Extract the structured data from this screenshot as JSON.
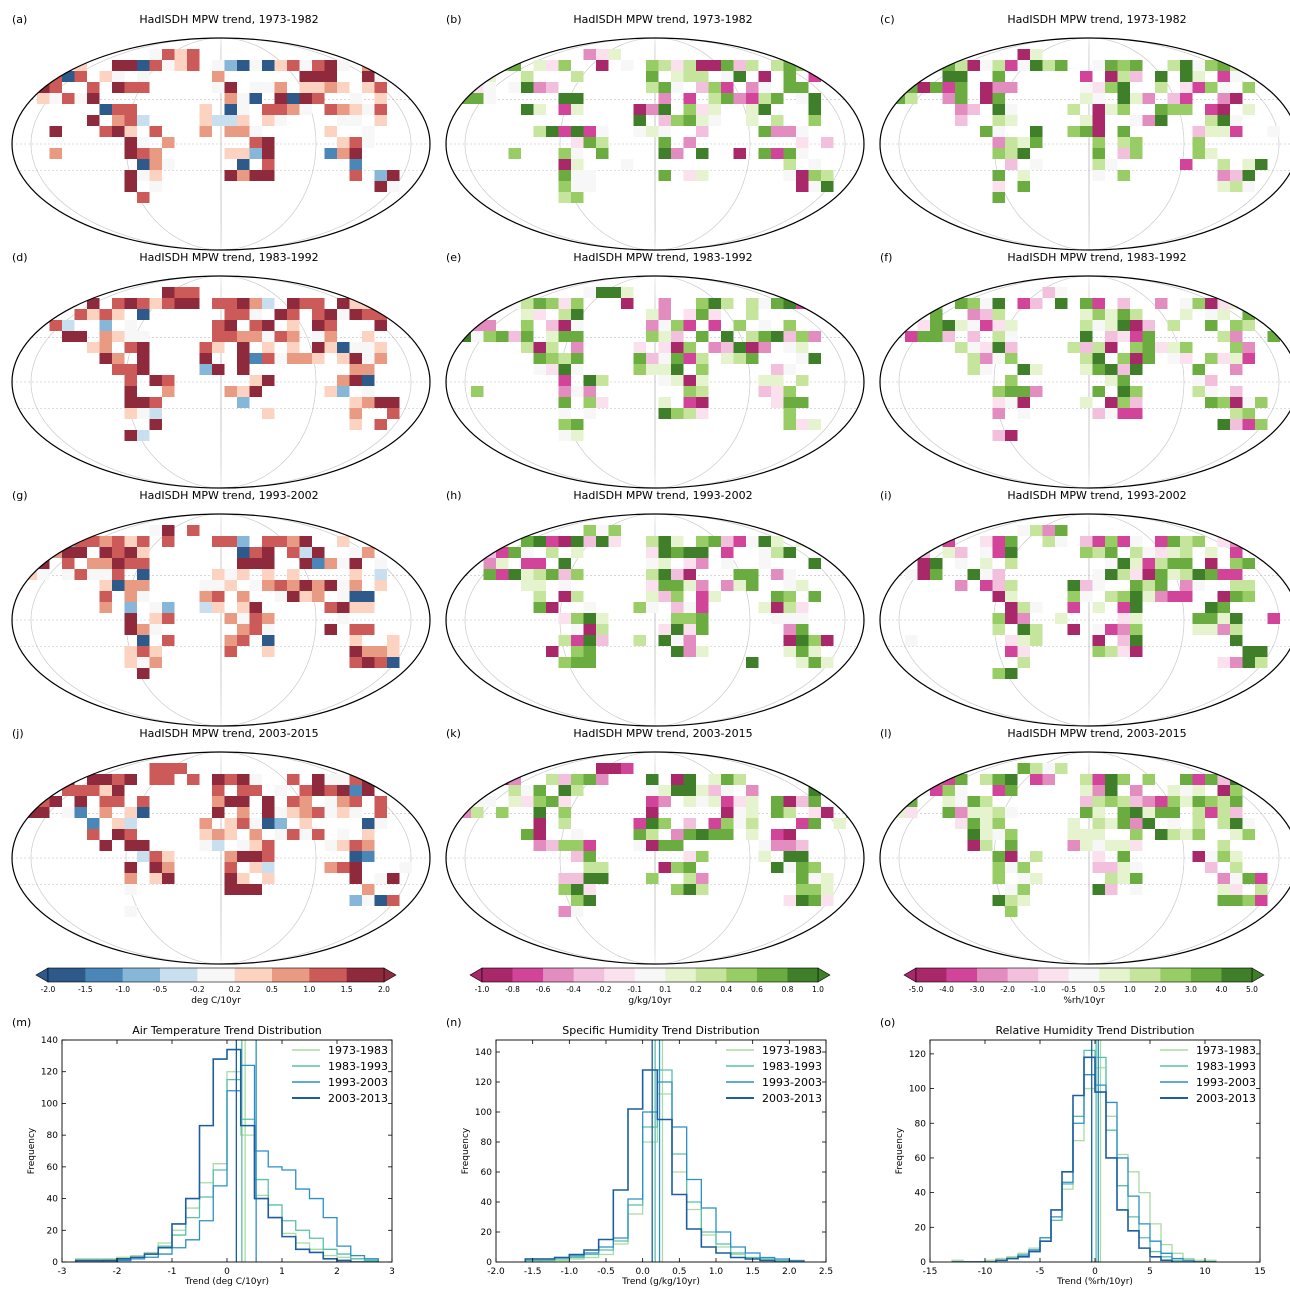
{
  "maps": [
    {
      "label": "(a)",
      "title": "HadISDH MPW trend, 1973-1982",
      "scheme": "temp"
    },
    {
      "label": "(b)",
      "title": "HadISDH MPW trend, 1973-1982",
      "scheme": "q"
    },
    {
      "label": "(c)",
      "title": "HadISDH MPW trend, 1973-1982",
      "scheme": "rh"
    },
    {
      "label": "(d)",
      "title": "HadISDH MPW trend, 1983-1992",
      "scheme": "temp"
    },
    {
      "label": "(e)",
      "title": "HadISDH MPW trend, 1983-1992",
      "scheme": "q"
    },
    {
      "label": "(f)",
      "title": "HadISDH MPW trend, 1983-1992",
      "scheme": "rh"
    },
    {
      "label": "(g)",
      "title": "HadISDH MPW trend, 1993-2002",
      "scheme": "temp"
    },
    {
      "label": "(h)",
      "title": "HadISDH MPW trend, 1993-2002",
      "scheme": "q"
    },
    {
      "label": "(i)",
      "title": "HadISDH MPW trend, 1993-2002",
      "scheme": "rh"
    },
    {
      "label": "(j)",
      "title": "HadISDH MPW trend, 2003-2015",
      "scheme": "temp"
    },
    {
      "label": "(k)",
      "title": "HadISDH MPW trend, 2003-2015",
      "scheme": "q"
    },
    {
      "label": "(l)",
      "title": "HadISDH MPW trend, 2003-2015",
      "scheme": "rh"
    }
  ],
  "colorbars": [
    {
      "label": "deg C/10yr",
      "ticks": [
        "-2.0",
        "-1.5",
        "-1.0",
        "-0.5",
        "-0.2",
        "0.2",
        "0.5",
        "1.0",
        "1.5",
        "2.0"
      ],
      "colors": [
        "#2d5a8a",
        "#4a86b8",
        "#86b6d8",
        "#c8dff0",
        "#f7f7f7",
        "#fcd3c0",
        "#e99a82",
        "#cc5a58",
        "#8e2a3c"
      ]
    },
    {
      "label": "g/kg/10yr",
      "ticks": [
        "-1.0",
        "-0.8",
        "-0.6",
        "-0.4",
        "-0.2",
        "-0.1",
        "0.1",
        "0.2",
        "0.4",
        "0.6",
        "0.8",
        "1.0"
      ],
      "colors": [
        "#a8286a",
        "#d1449a",
        "#e38cc0",
        "#f2bfdc",
        "#fbe0ee",
        "#f7f7f7",
        "#e5f3cf",
        "#c6e59c",
        "#98cc64",
        "#6aac40",
        "#3f7f2a"
      ]
    },
    {
      "label": "%rh/10yr",
      "ticks": [
        "-5.0",
        "-4.0",
        "-3.0",
        "-2.0",
        "-1.0",
        "-0.5",
        "0.5",
        "1.0",
        "2.0",
        "3.0",
        "4.0",
        "5.0"
      ],
      "colors": [
        "#a8286a",
        "#d1449a",
        "#e38cc0",
        "#f2bfdc",
        "#fbe0ee",
        "#f7f7f7",
        "#e5f3cf",
        "#c6e59c",
        "#98cc64",
        "#6aac40",
        "#3f7f2a"
      ]
    }
  ],
  "histograms": [
    {
      "label": "(m)",
      "title": "Air Temperature Trend Distribution",
      "xlabel": "Trend (deg C/10yr)",
      "ylabel": "Frequency"
    },
    {
      "label": "(n)",
      "title": "Specific Humidity Trend Distribution",
      "xlabel": "Trend (g/kg/10yr)",
      "ylabel": "Frequency"
    },
    {
      "label": "(o)",
      "title": "Relative Humidity Trend Distribution",
      "xlabel": "Trend (%rh/10yr)",
      "ylabel": "Frequency"
    }
  ],
  "chart_data": [
    {
      "type": "histogram",
      "title": "Air Temperature Trend Distribution",
      "xlabel": "Trend (deg C/10yr)",
      "ylabel": "Frequency",
      "xlim": [
        -3,
        3
      ],
      "ylim": [
        0,
        140
      ],
      "xticks": [
        "-3",
        "-2",
        "-1",
        "0",
        "1",
        "2",
        "3"
      ],
      "yticks": [
        "0",
        "20",
        "40",
        "60",
        "80",
        "100",
        "120",
        "140"
      ],
      "legend_position": "top-right",
      "bin_edges": [
        -2.75,
        -2.5,
        -2.25,
        -2.0,
        -1.75,
        -1.5,
        -1.25,
        -1.0,
        -0.75,
        -0.5,
        -0.25,
        0.0,
        0.25,
        0.5,
        0.75,
        1.0,
        1.25,
        1.5,
        1.75,
        2.0,
        2.25,
        2.5,
        2.75
      ],
      "series": [
        {
          "name": "1973-1983",
          "color": "#a8dca0",
          "values": [
            2,
            2,
            2,
            3,
            4,
            6,
            12,
            20,
            34,
            50,
            62,
            120,
            80,
            42,
            28,
            18,
            12,
            8,
            4,
            3,
            2,
            1
          ],
          "mean": 0.33
        },
        {
          "name": "1983-1993",
          "color": "#59c1a7",
          "values": [
            0,
            0,
            1,
            1,
            3,
            5,
            10,
            17,
            28,
            41,
            58,
            115,
            90,
            52,
            36,
            26,
            20,
            15,
            8,
            5,
            2,
            1
          ],
          "mean": 0.27
        },
        {
          "name": "1993-2003",
          "color": "#2c8fc7",
          "values": [
            0,
            0,
            0,
            1,
            2,
            3,
            5,
            9,
            14,
            26,
            48,
            108,
            124,
            70,
            60,
            58,
            46,
            40,
            28,
            10,
            4,
            2
          ],
          "mean": 0.53
        },
        {
          "name": "2003-2013",
          "color": "#1c5e9f",
          "values": [
            1,
            1,
            1,
            2,
            3,
            5,
            9,
            24,
            40,
            86,
            128,
            134,
            86,
            40,
            28,
            16,
            8,
            6,
            2,
            1,
            0,
            0
          ],
          "mean": 0.17
        }
      ]
    },
    {
      "type": "histogram",
      "title": "Specific Humidity Trend Distribution",
      "xlabel": "Trend (g/kg/10yr)",
      "ylabel": "Frequency",
      "xlim": [
        -2.0,
        2.5
      ],
      "ylim": [
        0,
        148
      ],
      "xticks": [
        "-2.0",
        "-1.5",
        "-1.0",
        "-0.5",
        "0.0",
        "0.5",
        "1.0",
        "1.5",
        "2.0",
        "2.5"
      ],
      "yticks": [
        "0",
        "20",
        "40",
        "60",
        "80",
        "100",
        "120",
        "140"
      ],
      "legend_position": "top-right",
      "bin_edges": [
        -1.6,
        -1.4,
        -1.2,
        -1.0,
        -0.8,
        -0.6,
        -0.4,
        -0.2,
        0.0,
        0.2,
        0.4,
        0.6,
        0.8,
        1.0,
        1.2,
        1.4,
        1.6,
        1.8,
        2.0,
        2.2
      ],
      "series": [
        {
          "name": "1973-1983",
          "color": "#a8dca0",
          "values": [
            0,
            1,
            1,
            2,
            3,
            5,
            12,
            32,
            80,
            112,
            60,
            35,
            18,
            10,
            5,
            3,
            2,
            1,
            1
          ],
          "mean": 0.27
        },
        {
          "name": "1983-1993",
          "color": "#59c1a7",
          "values": [
            1,
            1,
            2,
            3,
            5,
            8,
            14,
            38,
            90,
            128,
            72,
            40,
            20,
            12,
            6,
            3,
            2,
            1,
            0
          ],
          "mean": 0.17
        },
        {
          "name": "1993-2003",
          "color": "#2c8fc7",
          "values": [
            2,
            2,
            3,
            4,
            6,
            10,
            16,
            42,
            100,
            120,
            90,
            55,
            36,
            20,
            10,
            6,
            3,
            2,
            1
          ],
          "mean": 0.23
        },
        {
          "name": "2003-2013",
          "color": "#1c5e9f",
          "values": [
            2,
            2,
            3,
            5,
            8,
            15,
            48,
            102,
            128,
            95,
            45,
            22,
            10,
            6,
            3,
            2,
            1,
            0,
            0
          ],
          "mean": 0.13
        }
      ]
    },
    {
      "type": "histogram",
      "title": "Relative Humidity Trend Distribution",
      "xlabel": "Trend (%rh/10yr)",
      "ylabel": "Frequency",
      "xlim": [
        -15,
        15
      ],
      "ylim": [
        0,
        128
      ],
      "xticks": [
        "-15",
        "-10",
        "-5",
        "0",
        "5",
        "10",
        "15"
      ],
      "yticks": [
        "0",
        "20",
        "40",
        "60",
        "80",
        "100",
        "120"
      ],
      "legend_position": "top-right",
      "bin_edges": [
        -13,
        -12,
        -11,
        -10,
        -9,
        -8,
        -7,
        -6,
        -5,
        -4,
        -3,
        -2,
        -1,
        0,
        1,
        2,
        3,
        4,
        5,
        6,
        7,
        8,
        9,
        10,
        11
      ],
      "series": [
        {
          "name": "1973-1983",
          "color": "#a8dca0",
          "values": [
            1,
            0,
            0,
            1,
            2,
            3,
            5,
            8,
            14,
            24,
            42,
            70,
            100,
            112,
            84,
            62,
            52,
            40,
            22,
            10,
            5,
            2,
            1,
            1
          ],
          "mean": 0.5
        },
        {
          "name": "1983-1993",
          "color": "#59c1a7",
          "values": [
            0,
            0,
            0,
            0,
            1,
            2,
            3,
            6,
            12,
            24,
            45,
            84,
            122,
            118,
            76,
            44,
            26,
            14,
            6,
            3,
            1,
            1,
            0,
            0
          ],
          "mean": 0.1
        },
        {
          "name": "1993-2003",
          "color": "#2c8fc7",
          "values": [
            0,
            0,
            0,
            0,
            1,
            2,
            4,
            7,
            14,
            26,
            46,
            80,
            108,
            102,
            92,
            60,
            38,
            22,
            12,
            5,
            2,
            1,
            0,
            0
          ],
          "mean": 0.3
        },
        {
          "name": "2003-2013",
          "color": "#1c5e9f",
          "values": [
            0,
            0,
            0,
            0,
            1,
            2,
            3,
            6,
            12,
            30,
            52,
            96,
            118,
            98,
            60,
            30,
            18,
            8,
            3,
            1,
            0,
            0,
            0,
            0
          ],
          "mean": -0.3
        }
      ]
    }
  ]
}
